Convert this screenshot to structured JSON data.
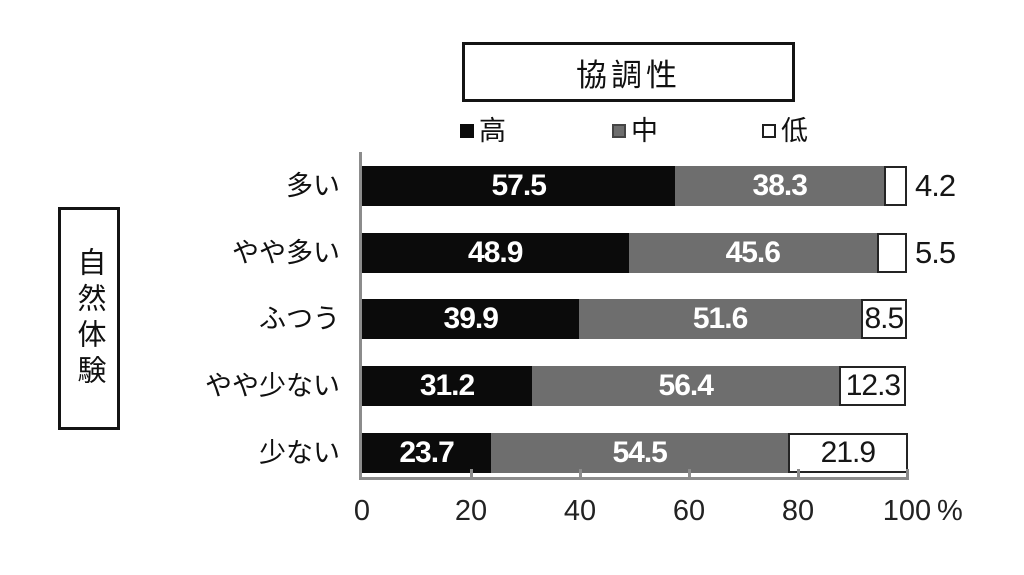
{
  "title": "協調性",
  "group_label": "自然体験",
  "legend": {
    "items": [
      {
        "key": "high",
        "label": "高",
        "swatch_color": "#0b0b0b"
      },
      {
        "key": "mid",
        "label": "中",
        "swatch_color": "#6e6e6e"
      },
      {
        "key": "low",
        "label": "低",
        "swatch_color": "#ffffff"
      }
    ]
  },
  "x_axis": {
    "tick_labels": [
      "0",
      "20",
      "40",
      "60",
      "80",
      "100"
    ],
    "unit_label": "%"
  },
  "colors": {
    "series_high": "#0b0b0b",
    "series_mid": "#6e6e6e",
    "series_low": "#ffffff",
    "axis": "#8c8c8c",
    "text": "#161616"
  },
  "chart_data": {
    "type": "bar",
    "variant": "horizontal-stacked-100percent",
    "title": "協調性",
    "group_axis_label": "自然体験",
    "categories": [
      "多い",
      "やや多い",
      "ふつう",
      "やや少ない",
      "少ない"
    ],
    "series": [
      {
        "name": "高",
        "color": "#0b0b0b",
        "values": [
          57.5,
          48.9,
          39.9,
          31.2,
          23.7
        ]
      },
      {
        "name": "中",
        "color": "#6e6e6e",
        "values": [
          38.3,
          45.6,
          51.6,
          56.4,
          54.5
        ]
      },
      {
        "name": "低",
        "color": "#ffffff",
        "values": [
          4.2,
          5.5,
          8.5,
          12.3,
          21.9
        ]
      }
    ],
    "xlim": [
      0,
      100
    ],
    "x_ticks": [
      0,
      20,
      40,
      60,
      80,
      100
    ],
    "x_unit": "%",
    "legend_position": "top",
    "grid": false,
    "value_labels_shown": true
  }
}
